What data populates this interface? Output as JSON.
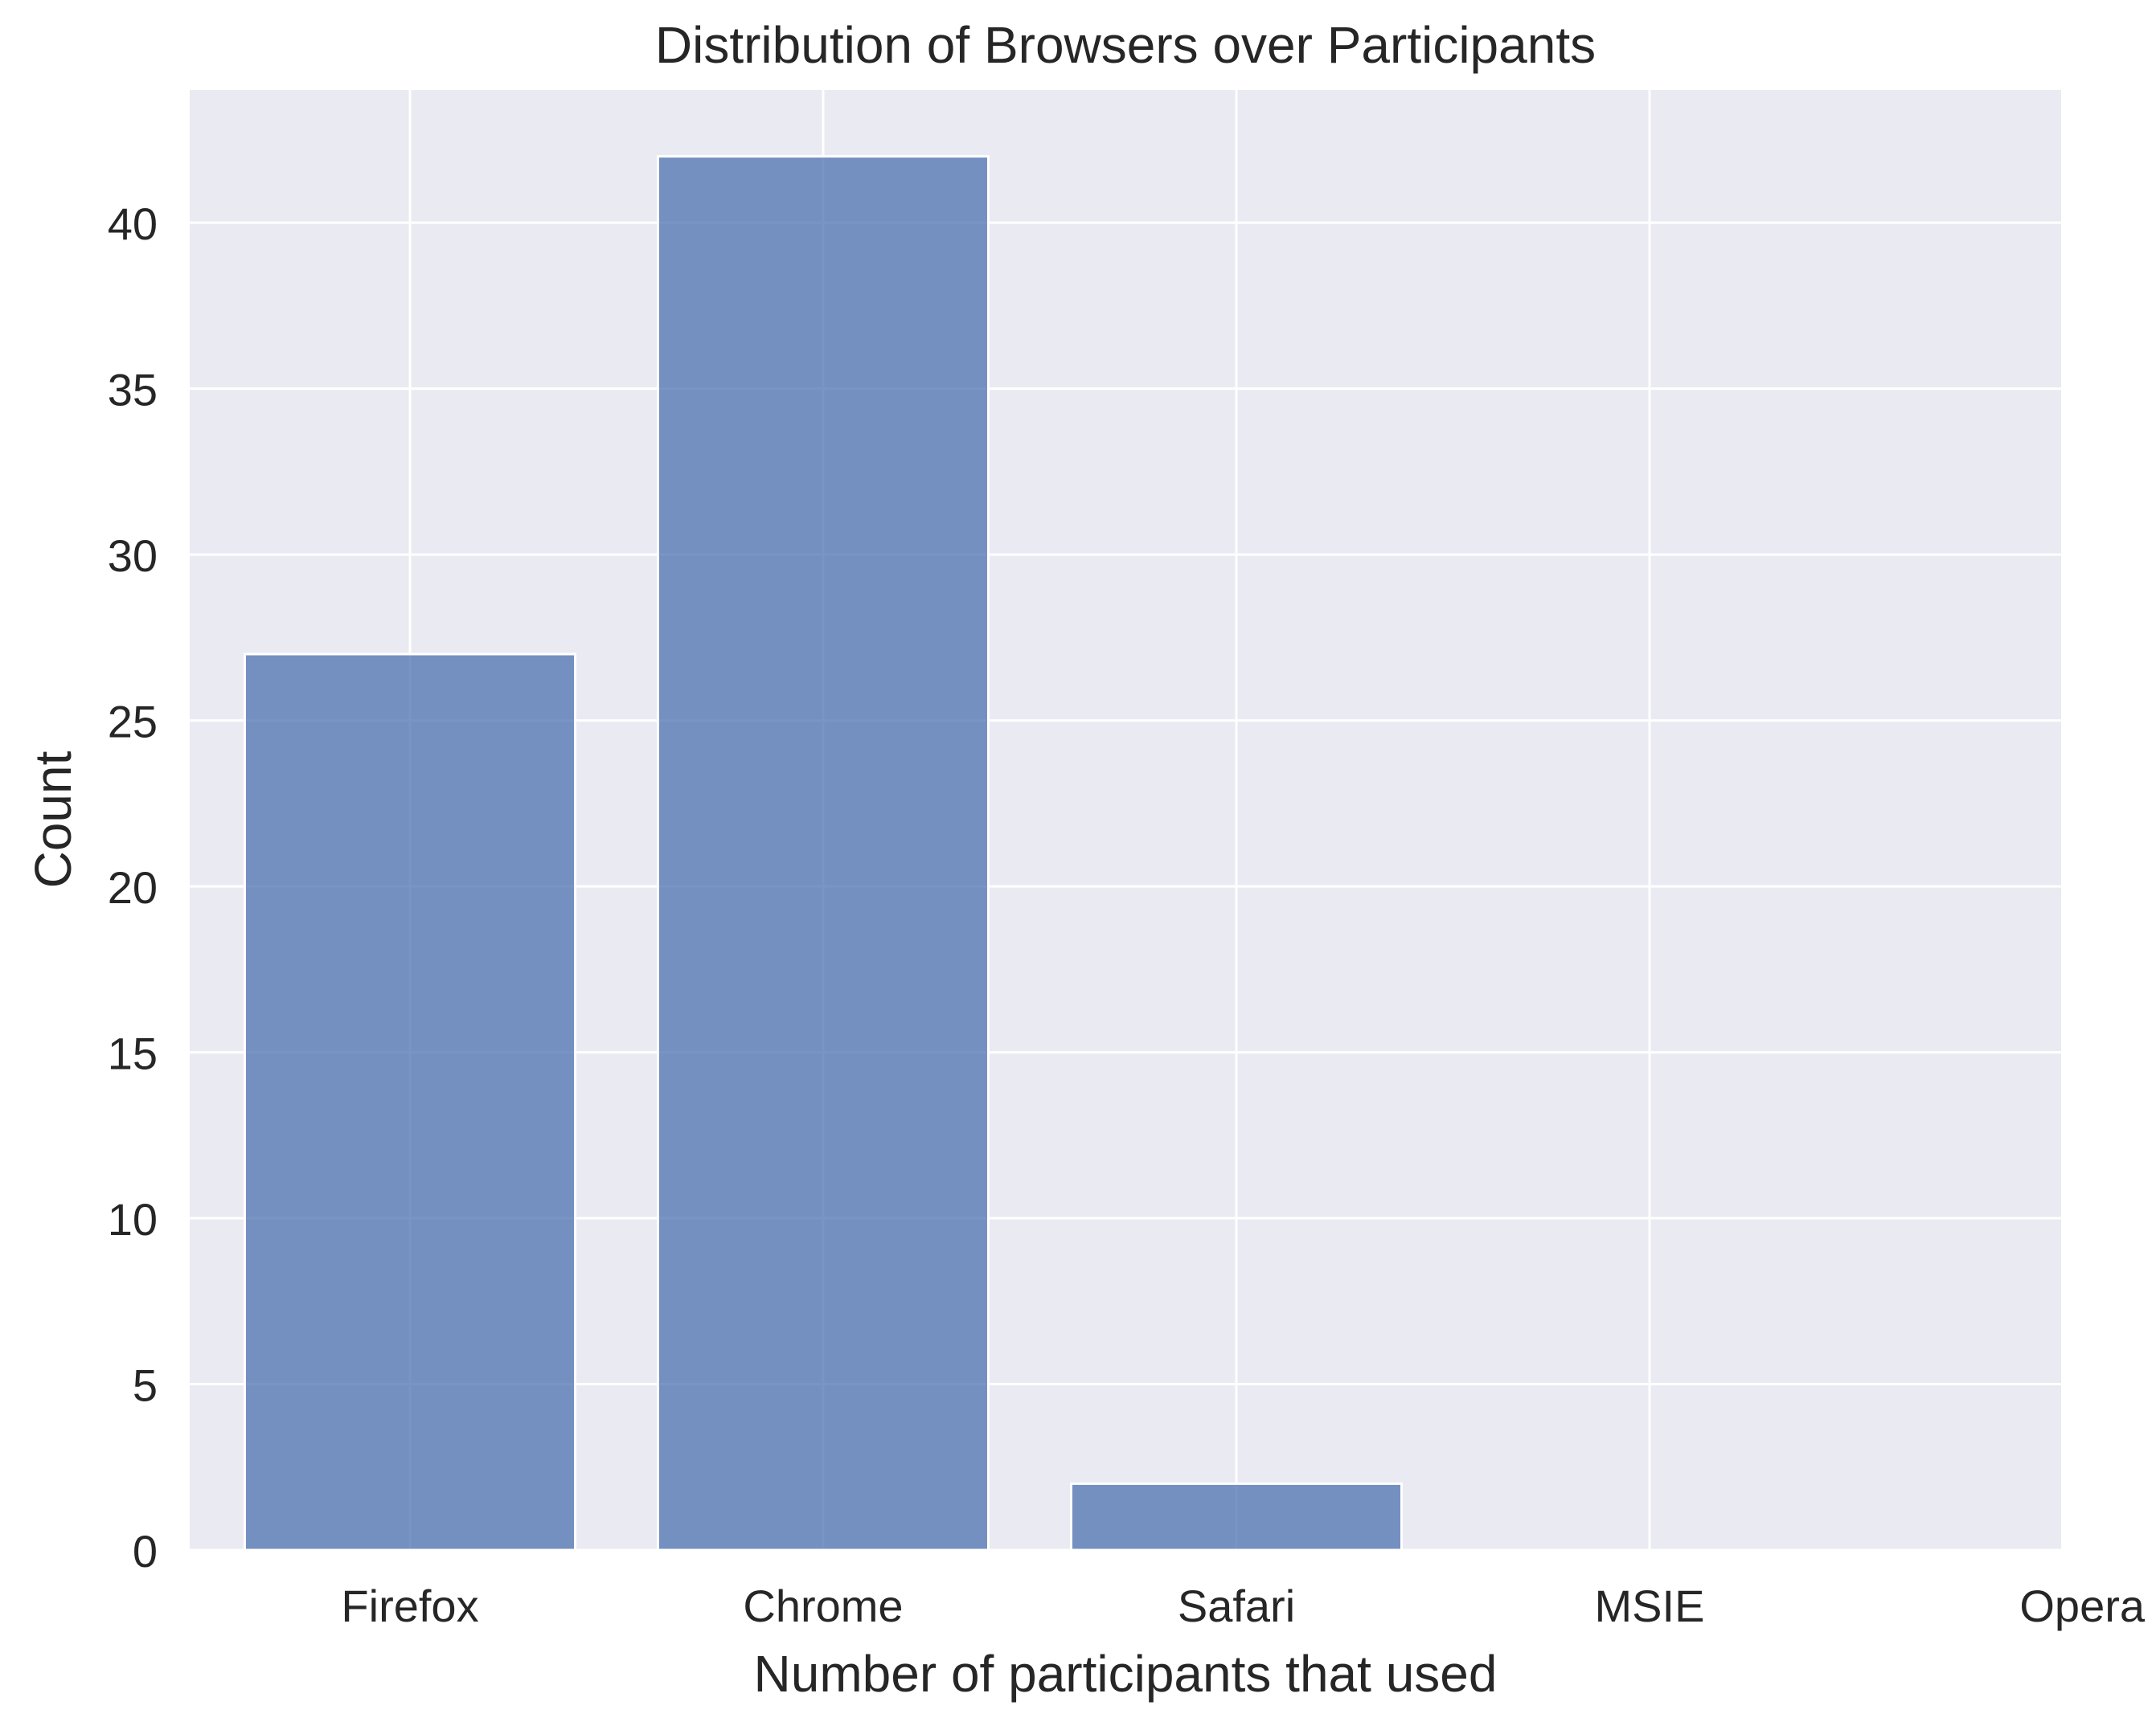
{
  "chart_data": {
    "type": "bar",
    "title": "Distribution of Browsers over Participants",
    "xlabel": "Number of participants that used",
    "ylabel": "Count",
    "categories": [
      "Firefox",
      "Chrome",
      "Safari",
      "MSIE",
      "Opera"
    ],
    "values": [
      27,
      42,
      2,
      0,
      0
    ],
    "ylim": [
      0,
      44
    ],
    "yticks": [
      0,
      5,
      10,
      15,
      20,
      25,
      30,
      35,
      40
    ],
    "grid": true,
    "colors": {
      "background": "#eaeaf2",
      "bar": "#4c72b0",
      "grid": "#ffffff",
      "text": "#262626"
    }
  }
}
